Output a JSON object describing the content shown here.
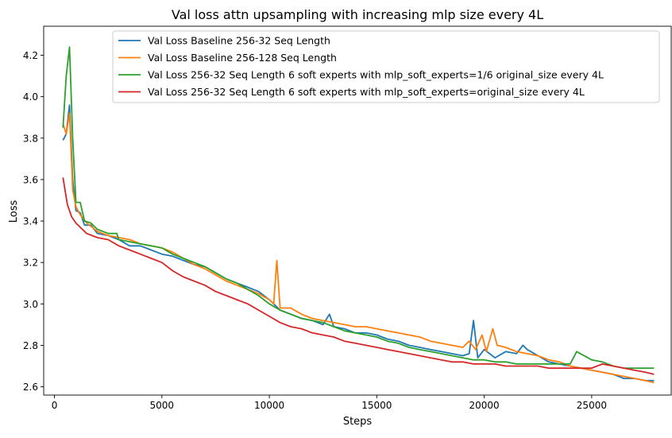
{
  "chart_data": {
    "type": "line",
    "title": "Val loss attn upsampling with increasing mlp size every 4L",
    "xlabel": "Steps",
    "ylabel": "Loss",
    "xlim": [
      -500,
      28700
    ],
    "ylim": [
      2.56,
      4.34
    ],
    "xticks": [
      0,
      5000,
      10000,
      15000,
      20000,
      25000
    ],
    "xtick_labels": [
      "0",
      "5000",
      "10000",
      "15000",
      "20000",
      "25000"
    ],
    "yticks": [
      2.6,
      2.8,
      3.0,
      3.2,
      3.4,
      3.6,
      3.8,
      4.0,
      4.2
    ],
    "ytick_labels": [
      "2.6",
      "2.8",
      "3.0",
      "3.2",
      "3.4",
      "3.6",
      "3.8",
      "4.0",
      "4.2"
    ],
    "grid": false,
    "legend_position": "top-right",
    "series": [
      {
        "name": "Val Loss Baseline 256-32 Seq Length",
        "color": "#1f77b4",
        "points": [
          [
            400,
            3.79
          ],
          [
            550,
            3.82
          ],
          [
            700,
            3.96
          ],
          [
            850,
            3.6
          ],
          [
            1000,
            3.45
          ],
          [
            1200,
            3.44
          ],
          [
            1400,
            3.38
          ],
          [
            1700,
            3.38
          ],
          [
            2000,
            3.34
          ],
          [
            2500,
            3.33
          ],
          [
            3000,
            3.31
          ],
          [
            3500,
            3.28
          ],
          [
            4000,
            3.28
          ],
          [
            4500,
            3.26
          ],
          [
            5000,
            3.24
          ],
          [
            5500,
            3.23
          ],
          [
            6000,
            3.21
          ],
          [
            6500,
            3.19
          ],
          [
            7000,
            3.18
          ],
          [
            7500,
            3.15
          ],
          [
            8000,
            3.12
          ],
          [
            8500,
            3.1
          ],
          [
            9000,
            3.08
          ],
          [
            9500,
            3.06
          ],
          [
            10000,
            3.02
          ],
          [
            10500,
            2.97
          ],
          [
            11000,
            2.95
          ],
          [
            11500,
            2.93
          ],
          [
            12000,
            2.92
          ],
          [
            12500,
            2.9
          ],
          [
            12800,
            2.95
          ],
          [
            13000,
            2.89
          ],
          [
            13500,
            2.88
          ],
          [
            14000,
            2.86
          ],
          [
            14500,
            2.86
          ],
          [
            15000,
            2.85
          ],
          [
            15500,
            2.83
          ],
          [
            16000,
            2.82
          ],
          [
            16500,
            2.8
          ],
          [
            17000,
            2.79
          ],
          [
            17500,
            2.78
          ],
          [
            18000,
            2.77
          ],
          [
            18500,
            2.76
          ],
          [
            19000,
            2.75
          ],
          [
            19300,
            2.76
          ],
          [
            19500,
            2.92
          ],
          [
            19700,
            2.74
          ],
          [
            20000,
            2.78
          ],
          [
            20500,
            2.74
          ],
          [
            21000,
            2.77
          ],
          [
            21500,
            2.76
          ],
          [
            21800,
            2.8
          ],
          [
            22000,
            2.78
          ],
          [
            22500,
            2.75
          ],
          [
            23000,
            2.72
          ],
          [
            23500,
            2.71
          ],
          [
            24000,
            2.7
          ],
          [
            24500,
            2.69
          ],
          [
            25000,
            2.68
          ],
          [
            25500,
            2.67
          ],
          [
            26000,
            2.66
          ],
          [
            26500,
            2.64
          ],
          [
            27000,
            2.64
          ],
          [
            27500,
            2.63
          ],
          [
            27900,
            2.63
          ]
        ]
      },
      {
        "name": "Val Loss Baseline 256-128 Seq Length",
        "color": "#ff7f0e",
        "points": [
          [
            400,
            3.87
          ],
          [
            550,
            3.82
          ],
          [
            700,
            3.92
          ],
          [
            850,
            3.55
          ],
          [
            1000,
            3.47
          ],
          [
            1200,
            3.43
          ],
          [
            1500,
            3.39
          ],
          [
            2000,
            3.35
          ],
          [
            2500,
            3.33
          ],
          [
            3000,
            3.32
          ],
          [
            3500,
            3.31
          ],
          [
            4000,
            3.29
          ],
          [
            4500,
            3.28
          ],
          [
            5000,
            3.27
          ],
          [
            5500,
            3.25
          ],
          [
            6000,
            3.22
          ],
          [
            6500,
            3.19
          ],
          [
            7000,
            3.17
          ],
          [
            7500,
            3.14
          ],
          [
            8000,
            3.11
          ],
          [
            8500,
            3.09
          ],
          [
            9000,
            3.07
          ],
          [
            9500,
            3.05
          ],
          [
            10000,
            3.02
          ],
          [
            10200,
            3.0
          ],
          [
            10350,
            3.21
          ],
          [
            10500,
            2.98
          ],
          [
            11000,
            2.98
          ],
          [
            11500,
            2.95
          ],
          [
            12000,
            2.93
          ],
          [
            12500,
            2.92
          ],
          [
            13000,
            2.91
          ],
          [
            13500,
            2.9
          ],
          [
            14000,
            2.89
          ],
          [
            14500,
            2.89
          ],
          [
            15000,
            2.88
          ],
          [
            15500,
            2.87
          ],
          [
            16000,
            2.86
          ],
          [
            16500,
            2.85
          ],
          [
            17000,
            2.84
          ],
          [
            17500,
            2.82
          ],
          [
            18000,
            2.81
          ],
          [
            18500,
            2.8
          ],
          [
            19000,
            2.79
          ],
          [
            19300,
            2.82
          ],
          [
            19600,
            2.78
          ],
          [
            19900,
            2.85
          ],
          [
            20100,
            2.77
          ],
          [
            20400,
            2.88
          ],
          [
            20600,
            2.8
          ],
          [
            21000,
            2.79
          ],
          [
            21500,
            2.77
          ],
          [
            22000,
            2.76
          ],
          [
            22500,
            2.75
          ],
          [
            23000,
            2.73
          ],
          [
            23500,
            2.72
          ],
          [
            24000,
            2.7
          ],
          [
            24500,
            2.69
          ],
          [
            25000,
            2.68
          ],
          [
            25500,
            2.67
          ],
          [
            26000,
            2.66
          ],
          [
            26500,
            2.65
          ],
          [
            27000,
            2.64
          ],
          [
            27500,
            2.63
          ],
          [
            27900,
            2.62
          ]
        ]
      },
      {
        "name": "Val Loss 256-32 Seq Length 6 soft experts with mlp_soft_experts=1/6 original_size every 4L",
        "color": "#2ca02c",
        "points": [
          [
            400,
            3.85
          ],
          [
            550,
            4.1
          ],
          [
            700,
            4.24
          ],
          [
            850,
            3.8
          ],
          [
            1000,
            3.49
          ],
          [
            1200,
            3.49
          ],
          [
            1400,
            3.4
          ],
          [
            1700,
            3.39
          ],
          [
            2000,
            3.36
          ],
          [
            2500,
            3.34
          ],
          [
            2900,
            3.34
          ],
          [
            3000,
            3.31
          ],
          [
            3500,
            3.3
          ],
          [
            4000,
            3.29
          ],
          [
            4500,
            3.28
          ],
          [
            5000,
            3.27
          ],
          [
            5500,
            3.24
          ],
          [
            6000,
            3.22
          ],
          [
            6500,
            3.2
          ],
          [
            7000,
            3.18
          ],
          [
            7500,
            3.15
          ],
          [
            8000,
            3.12
          ],
          [
            8500,
            3.1
          ],
          [
            9000,
            3.07
          ],
          [
            9500,
            3.04
          ],
          [
            10000,
            3.0
          ],
          [
            10500,
            2.97
          ],
          [
            11000,
            2.95
          ],
          [
            11500,
            2.93
          ],
          [
            12000,
            2.92
          ],
          [
            12500,
            2.91
          ],
          [
            13000,
            2.89
          ],
          [
            13500,
            2.87
          ],
          [
            14000,
            2.86
          ],
          [
            14500,
            2.85
          ],
          [
            15000,
            2.84
          ],
          [
            15500,
            2.82
          ],
          [
            16000,
            2.81
          ],
          [
            16500,
            2.79
          ],
          [
            17000,
            2.78
          ],
          [
            17500,
            2.77
          ],
          [
            18000,
            2.76
          ],
          [
            18500,
            2.75
          ],
          [
            19000,
            2.74
          ],
          [
            19500,
            2.73
          ],
          [
            20000,
            2.73
          ],
          [
            20500,
            2.72
          ],
          [
            21000,
            2.72
          ],
          [
            21500,
            2.71
          ],
          [
            22000,
            2.71
          ],
          [
            22500,
            2.71
          ],
          [
            23000,
            2.71
          ],
          [
            23500,
            2.71
          ],
          [
            24000,
            2.71
          ],
          [
            24300,
            2.77
          ],
          [
            25000,
            2.73
          ],
          [
            25500,
            2.72
          ],
          [
            26000,
            2.7
          ],
          [
            26500,
            2.69
          ],
          [
            27000,
            2.69
          ],
          [
            27500,
            2.69
          ],
          [
            27700,
            2.69
          ],
          [
            27900,
            2.69
          ]
        ]
      },
      {
        "name": "Val Loss 256-32 Seq Length 6 soft experts with mlp_soft_experts=original_size every 4L",
        "color": "#d62728",
        "points": [
          [
            400,
            3.61
          ],
          [
            600,
            3.48
          ],
          [
            800,
            3.42
          ],
          [
            1000,
            3.39
          ],
          [
            1200,
            3.37
          ],
          [
            1500,
            3.34
          ],
          [
            2000,
            3.32
          ],
          [
            2500,
            3.31
          ],
          [
            3000,
            3.28
          ],
          [
            3500,
            3.26
          ],
          [
            4000,
            3.24
          ],
          [
            4500,
            3.22
          ],
          [
            5000,
            3.2
          ],
          [
            5500,
            3.16
          ],
          [
            6000,
            3.13
          ],
          [
            6500,
            3.11
          ],
          [
            7000,
            3.09
          ],
          [
            7500,
            3.06
          ],
          [
            8000,
            3.04
          ],
          [
            8500,
            3.02
          ],
          [
            9000,
            3.0
          ],
          [
            9500,
            2.97
          ],
          [
            10000,
            2.94
          ],
          [
            10500,
            2.91
          ],
          [
            11000,
            2.89
          ],
          [
            11500,
            2.88
          ],
          [
            12000,
            2.86
          ],
          [
            12500,
            2.85
          ],
          [
            13000,
            2.84
          ],
          [
            13500,
            2.82
          ],
          [
            14000,
            2.81
          ],
          [
            14500,
            2.8
          ],
          [
            15000,
            2.79
          ],
          [
            15500,
            2.78
          ],
          [
            16000,
            2.77
          ],
          [
            16500,
            2.76
          ],
          [
            17000,
            2.75
          ],
          [
            17500,
            2.74
          ],
          [
            18000,
            2.73
          ],
          [
            18500,
            2.72
          ],
          [
            19000,
            2.72
          ],
          [
            19500,
            2.71
          ],
          [
            20000,
            2.71
          ],
          [
            20500,
            2.71
          ],
          [
            21000,
            2.7
          ],
          [
            21500,
            2.7
          ],
          [
            22000,
            2.7
          ],
          [
            22500,
            2.7
          ],
          [
            23000,
            2.69
          ],
          [
            23500,
            2.69
          ],
          [
            24000,
            2.69
          ],
          [
            24500,
            2.69
          ],
          [
            25000,
            2.69
          ],
          [
            25500,
            2.71
          ],
          [
            26000,
            2.7
          ],
          [
            26500,
            2.69
          ],
          [
            27000,
            2.68
          ],
          [
            27500,
            2.67
          ],
          [
            27900,
            2.66
          ]
        ]
      }
    ]
  }
}
